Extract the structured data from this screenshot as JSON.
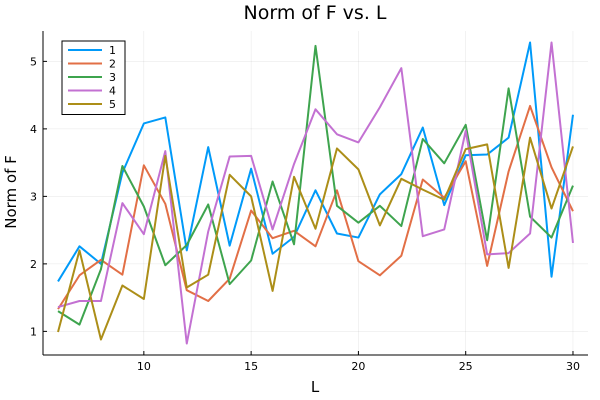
{
  "chart_data": {
    "type": "line",
    "title": "Norm of F vs. L",
    "xlabel": "L",
    "ylabel": "Norm of F",
    "xlim": [
      5.3,
      30.7
    ],
    "ylim": [
      0.65,
      5.45
    ],
    "xticks": [
      10,
      15,
      20,
      25,
      30
    ],
    "yticks": [
      1,
      2,
      3,
      4,
      5
    ],
    "grid": true,
    "legend_position": "top-left",
    "x": [
      6,
      7,
      8,
      9,
      10,
      11,
      12,
      13,
      14,
      15,
      16,
      17,
      18,
      19,
      20,
      21,
      22,
      23,
      24,
      25,
      26,
      27,
      28,
      29,
      30
    ],
    "series": [
      {
        "name": "1",
        "color": "#009af9",
        "values": [
          1.74,
          2.26,
          2.0,
          3.35,
          4.08,
          4.17,
          2.2,
          3.73,
          2.27,
          3.41,
          2.15,
          2.4,
          3.09,
          2.45,
          2.39,
          3.03,
          3.33,
          4.02,
          2.87,
          3.61,
          3.62,
          3.87,
          5.28,
          1.81,
          4.21
        ]
      },
      {
        "name": "2",
        "color": "#e26f46",
        "values": [
          1.33,
          1.83,
          2.06,
          1.84,
          3.46,
          2.89,
          1.61,
          1.45,
          1.78,
          2.79,
          2.38,
          2.49,
          2.26,
          3.09,
          2.04,
          1.83,
          2.12,
          3.25,
          2.98,
          3.52,
          1.97,
          3.37,
          4.34,
          3.43,
          2.78
        ]
      },
      {
        "name": "3",
        "color": "#3ea44e",
        "values": [
          1.3,
          1.1,
          1.92,
          3.45,
          2.85,
          1.98,
          2.28,
          2.88,
          1.7,
          2.05,
          3.22,
          2.29,
          5.23,
          2.86,
          2.61,
          2.86,
          2.56,
          3.85,
          3.49,
          4.06,
          2.35,
          4.6,
          2.7,
          2.39,
          3.16
        ]
      },
      {
        "name": "4",
        "color": "#c371d2",
        "values": [
          1.36,
          1.45,
          1.45,
          2.9,
          2.44,
          3.67,
          0.82,
          2.48,
          3.59,
          3.6,
          2.51,
          3.48,
          4.29,
          3.92,
          3.8,
          4.32,
          4.9,
          2.41,
          2.51,
          3.97,
          2.14,
          2.16,
          2.45,
          5.28,
          2.31
        ]
      },
      {
        "name": "5",
        "color": "#ac8e18",
        "values": [
          0.99,
          2.2,
          0.88,
          1.68,
          1.48,
          3.6,
          1.65,
          1.84,
          3.32,
          3.0,
          1.6,
          3.29,
          2.52,
          3.71,
          3.4,
          2.57,
          3.26,
          3.1,
          2.95,
          3.7,
          3.77,
          1.94,
          3.87,
          2.82,
          3.74
        ]
      }
    ]
  }
}
